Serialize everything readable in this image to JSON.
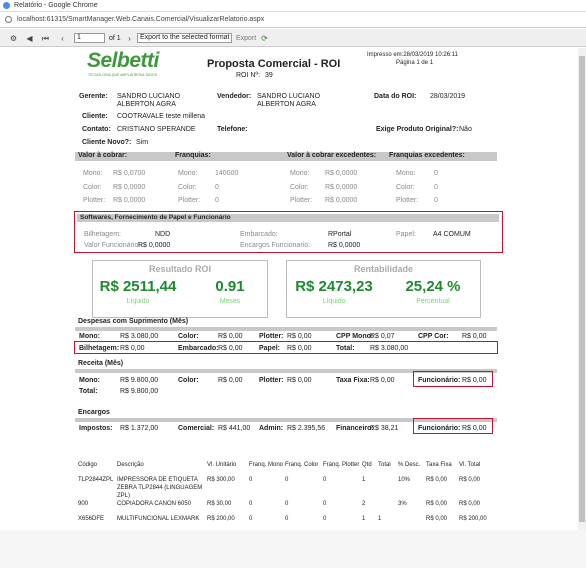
{
  "window": {
    "title": "Relatório - Google Chrome",
    "url": "localhost:61315/SmartManager.Web.Canais.Comercial/VisualizarRelatorio.aspx"
  },
  "toolbar": {
    "page": "1",
    "of": "of 1",
    "export_format": "Export to the selected format",
    "export": "Export"
  },
  "report": {
    "logo": {
      "name": "Selbetti",
      "tagline": "TECNOLOGIA QUE AMPLIA RESULTADOS"
    },
    "title": "Proposta Comercial - ROI",
    "roi_label": "ROI Nº:",
    "roi_number": "39",
    "printed": "Impresso em:28/03/2019 10:26:11",
    "page": "Página 1 de 1",
    "fields": {
      "gerente": {
        "label": "Gerente:",
        "value": "SANDRO LUCIANO ALBERTON AGRA"
      },
      "vendedor": {
        "label": "Vendedor:",
        "value": "SANDRO LUCIANO ALBERTON AGRA"
      },
      "data_roi": {
        "label": "Data do ROI:",
        "value": "28/03/2019"
      },
      "cliente": {
        "label": "Cliente:",
        "value": "COOTRAVALE teste millena"
      },
      "contato": {
        "label": "Contato:",
        "value": "CRISTIANO SPERANDE"
      },
      "telefone": {
        "label": "Telefone:"
      },
      "exige": {
        "label": "Exige Produto Original?:",
        "value": "Não"
      },
      "cliente_novo": {
        "label": "Cliente Novo?:",
        "value": "Sim"
      }
    },
    "summary": [
      {
        "title": "Valor à cobrar:",
        "rows": [
          {
            "label": "Mono:",
            "value": "R$ 0,0700"
          },
          {
            "label": "Color:",
            "value": "R$ 0,0000"
          },
          {
            "label": "Plotter:",
            "value": "R$ 0,0000"
          }
        ]
      },
      {
        "title": "Franquias:",
        "rows": [
          {
            "label": "Mono:",
            "value": "140000"
          },
          {
            "label": "Color:",
            "value": "0"
          },
          {
            "label": "Plotter:",
            "value": "0"
          }
        ]
      },
      {
        "title": "Valor à cobrar excedentes:",
        "rows": [
          {
            "label": "Mono:",
            "value": "R$ 0,0000"
          },
          {
            "label": "Color:",
            "value": "R$ 0,0000"
          },
          {
            "label": "Plotter:",
            "value": "R$ 0,0000"
          }
        ]
      },
      {
        "title": "Franquias excedentes:",
        "rows": [
          {
            "label": "Mono:",
            "value": "0"
          },
          {
            "label": "Color:",
            "value": "0"
          },
          {
            "label": "Plotter:",
            "value": "0"
          }
        ]
      }
    ],
    "softwares": {
      "title": "Softwares, Fornecimento de Papel e Funcionário",
      "items": [
        {
          "label": "Bilhetagem:",
          "value": "NDD"
        },
        {
          "label": "Embarcado:",
          "value": "RPortal"
        },
        {
          "label": "Papel:",
          "value": "A4 COMUM"
        },
        {
          "label": "Valor Funcionário:",
          "value": "R$ 0,0000"
        },
        {
          "label": "Encargos Funcionario:",
          "value": "R$ 0,0000"
        }
      ]
    },
    "cards": [
      {
        "title": "Resultado ROI",
        "items": [
          {
            "value": "R$ 2511,44",
            "caption": "Líquido"
          },
          {
            "value": "0.91",
            "caption": "Meses"
          }
        ]
      },
      {
        "title": "Rentabilidade",
        "items": [
          {
            "value": "R$ 2473,23",
            "caption": "Líquido"
          },
          {
            "value": "25,24 %",
            "caption": "Percentual"
          }
        ]
      }
    ],
    "despesas": {
      "title": "Despesas com Suprimento (Mês)",
      "row1": [
        {
          "label": "Mono:",
          "value": "R$ 3.080,00"
        },
        {
          "label": "Color:",
          "value": "R$ 0,00"
        },
        {
          "label": "Plotter:",
          "value": "R$ 0,00"
        },
        {
          "label": "CPP Mono:",
          "value": "R$ 0,07"
        },
        {
          "label": "CPP Cor:",
          "value": "R$ 0,00"
        }
      ],
      "row2": [
        {
          "label": "Bilhetagem:",
          "value": "R$ 0,00"
        },
        {
          "label": "Embarcado:",
          "value": "R$ 0,00"
        },
        {
          "label": "Papel:",
          "value": "R$ 0,00"
        },
        {
          "label": "Total:",
          "value": "R$ 3.080,00"
        }
      ]
    },
    "receita": {
      "title": "Receita (Mês)",
      "row1": [
        {
          "label": "Mono:",
          "value": "R$ 9.800,00"
        },
        {
          "label": "Color:",
          "value": "R$ 0,00"
        },
        {
          "label": "Plotter:",
          "value": "R$ 0,00"
        },
        {
          "label": "Taxa Fixa:",
          "value": "R$ 0,00"
        },
        {
          "label": "Funcionário:",
          "value": "R$ 0,00"
        }
      ],
      "row2": [
        {
          "label": "Total:",
          "value": "R$ 9.800,00"
        }
      ]
    },
    "encargos": {
      "title": "Encargos",
      "row1": [
        {
          "label": "Impostos:",
          "value": "R$ 1.372,00"
        },
        {
          "label": "Comercial:",
          "value": "R$ 441,00"
        },
        {
          "label": "Admin:",
          "value": "R$ 2.395,56"
        },
        {
          "label": "Financeiro:",
          "value": "R$ 38,21"
        },
        {
          "label": "Funcionário:",
          "value": "R$ 0,00"
        }
      ]
    },
    "table": {
      "columns": [
        "Código",
        "Descrição",
        "Vl. Unitário",
        "Franq. Mono",
        "Franq. Color",
        "Franq. Plotter",
        "Qtd",
        "Total",
        "% Desc.",
        "Taxa Fixa",
        "Vl. Total"
      ],
      "rows": [
        [
          "TLP2844ZPL",
          "IMPRESSORA DE ETIQUETA ZEBRA TLP2844 (LINGUAGEM ZPL)",
          "R$ 300,00",
          "0",
          "0",
          "0",
          "1",
          null,
          "10%",
          "R$ 0,00",
          "R$ 0,00"
        ],
        [
          "900",
          "COPIADORA CANON 6050",
          "R$ 30,00",
          "0",
          "0",
          "0",
          "2",
          null,
          "3%",
          "R$ 0,00",
          "R$ 0,00"
        ],
        [
          "X656DFE",
          "MULTIFUNCIONAL LEXMARK",
          "R$ 200,00",
          "0",
          "0",
          "0",
          "1",
          "1",
          null,
          "R$ 0,00",
          "R$ 200,00"
        ]
      ]
    }
  }
}
